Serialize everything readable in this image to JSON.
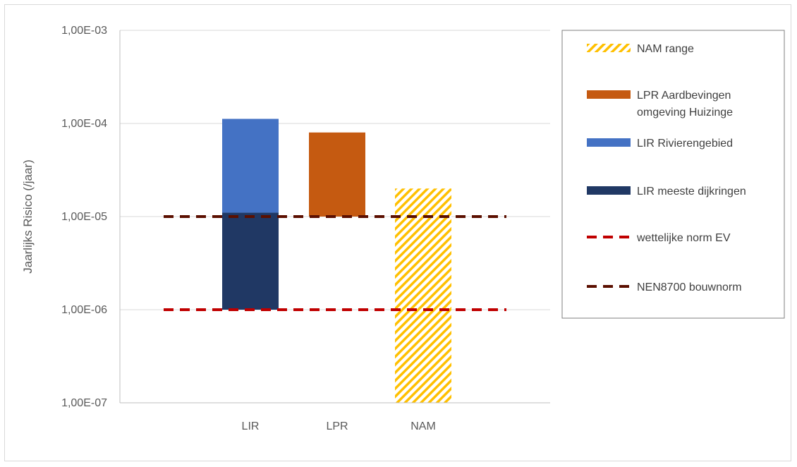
{
  "chart_data": {
    "type": "bar",
    "scale": "log",
    "ylabel": "Jaarlijks Risico (/jaar)",
    "ylim": [
      1e-07,
      0.001
    ],
    "y_ticks": [
      1e-07,
      1e-06,
      1e-05,
      0.0001,
      0.001
    ],
    "y_tick_labels": [
      "1,00E-07",
      "1,00E-06",
      "1,00E-05",
      "1,00E-04",
      "1,00E-03"
    ],
    "grid": true,
    "legend_position": "right",
    "categories": [
      "LIR",
      "LPR",
      "NAM"
    ],
    "series": [
      {
        "name": "NAM range",
        "category": "NAM",
        "style": "hatched",
        "color": "#ffc000",
        "from": 1e-07,
        "to": 2e-05
      },
      {
        "name": "LPR Aardbevingen omgeving Huizinge",
        "legend_lines": [
          "LPR Aardbevingen",
          "omgeving Huizinge"
        ],
        "category": "LPR",
        "style": "solid",
        "color": "#c55a11",
        "from": 1e-05,
        "to": 8e-05
      },
      {
        "name": "LIR Rivierengebied",
        "category": "LIR",
        "style": "solid",
        "color": "#4472c4",
        "from": 1.1e-05,
        "to": 0.000112
      },
      {
        "name": "LIR meeste dijkringen",
        "category": "LIR",
        "style": "solid",
        "color": "#203864",
        "from": 1e-06,
        "to": 1.1e-05
      }
    ],
    "reference_lines": [
      {
        "name": "wettelijke norm EV",
        "value": 1e-06,
        "color": "#c00000",
        "style": "dashed"
      },
      {
        "name": "NEN8700 bouwnorm",
        "value": 1e-05,
        "color": "#5b0f00",
        "style": "dashed"
      }
    ]
  }
}
